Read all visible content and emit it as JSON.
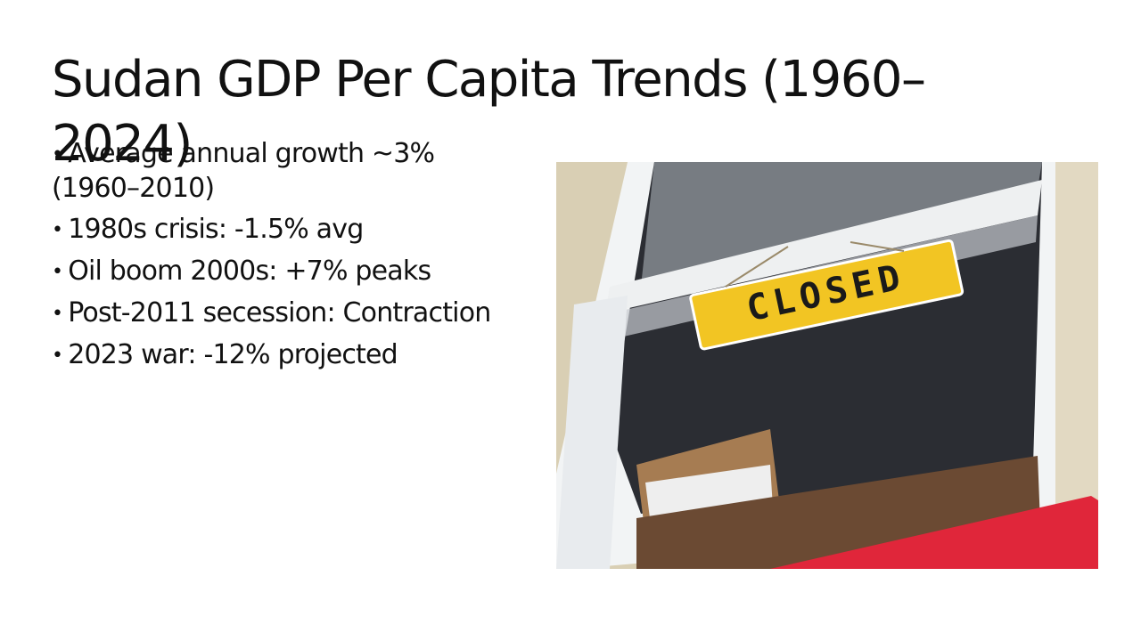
{
  "slide": {
    "title": "Sudan GDP Per Capita Trends (1960–2024)",
    "bullets": [
      "Average annual growth ~3% (1960–2010)",
      "1980s crisis: -1.5% avg",
      "Oil boom 2000s: +7% peaks",
      "Post-2011 secession: Contraction",
      "2023 war: -12% projected"
    ],
    "image": {
      "sign_text": "CLOSED"
    }
  }
}
